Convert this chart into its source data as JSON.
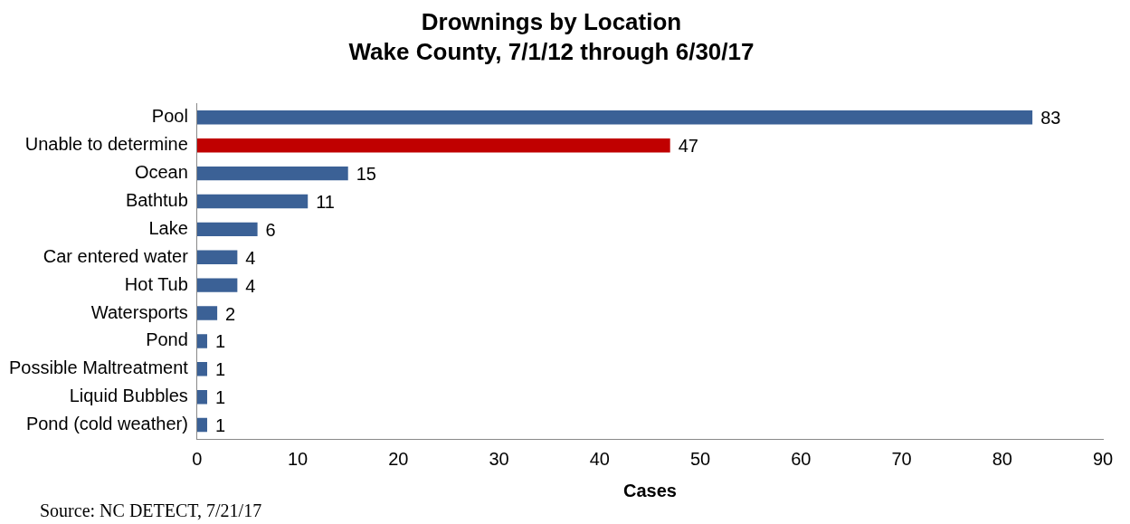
{
  "chart_data": {
    "type": "bar",
    "orientation": "horizontal",
    "title": "Drownings by Location",
    "subtitle": "Wake County, 7/1/12 through 6/30/17",
    "xlabel": "Cases",
    "categories": [
      "Pool",
      "Unable to determine",
      "Ocean",
      "Bathtub",
      "Lake",
      "Car entered water",
      "Hot Tub",
      "Watersports",
      "Pond",
      "Possible Maltreatment",
      "Liquid Bubbles",
      "Pond (cold weather)"
    ],
    "values": [
      83,
      47,
      15,
      11,
      6,
      4,
      4,
      2,
      1,
      1,
      1,
      1
    ],
    "colors": [
      "#3b6196",
      "#c00000",
      "#3b6196",
      "#3b6196",
      "#3b6196",
      "#3b6196",
      "#3b6196",
      "#3b6196",
      "#3b6196",
      "#3b6196",
      "#3b6196",
      "#3b6196"
    ],
    "xlim": [
      0,
      90
    ],
    "xticks": [
      0,
      10,
      20,
      30,
      40,
      50,
      60,
      70,
      80,
      90
    ],
    "grid": false,
    "legend": false,
    "data_labels": true,
    "annotations": [
      "Source: NC DETECT, 7/21/17"
    ]
  }
}
